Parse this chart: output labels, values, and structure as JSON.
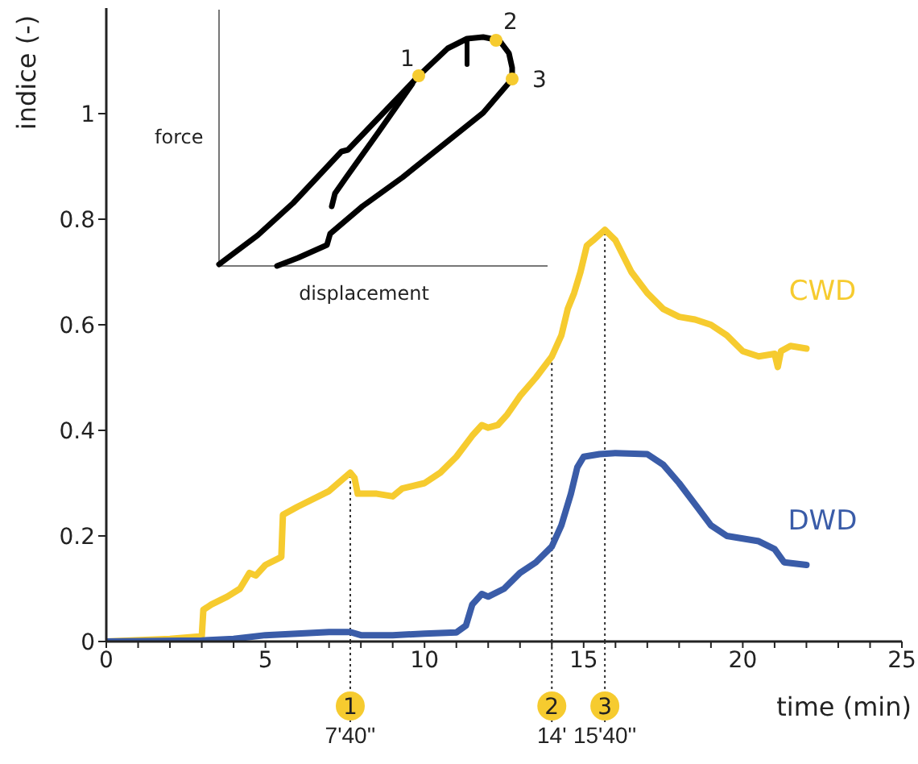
{
  "chart_data": {
    "type": "line",
    "xlabel": "time (min)",
    "ylabel": "indice (-)",
    "xlim": [
      0,
      25
    ],
    "ylim": [
      0,
      1.2
    ],
    "xticks": [
      0,
      {
        "value": 1,
        "label": null
      },
      {
        "value": 2,
        "label": null
      },
      {
        "value": 3,
        "label": null
      },
      {
        "value": 4,
        "label": null
      },
      5,
      {
        "value": 6,
        "label": null
      },
      {
        "value": 7,
        "label": null
      },
      {
        "value": 8,
        "label": null
      },
      {
        "value": 9,
        "label": null
      },
      10,
      {
        "value": 11,
        "label": null
      },
      {
        "value": 12,
        "label": null
      },
      {
        "value": 13,
        "label": null
      },
      {
        "value": 14,
        "label": null
      },
      15,
      {
        "value": 16,
        "label": null
      },
      {
        "value": 17,
        "label": null
      },
      {
        "value": 18,
        "label": null
      },
      {
        "value": 19,
        "label": null
      },
      20,
      {
        "value": 21,
        "label": null
      },
      {
        "value": 22,
        "label": null
      },
      {
        "value": 23,
        "label": null
      },
      {
        "value": 24,
        "label": null
      },
      25
    ],
    "yticks": [
      0,
      0.2,
      0.4,
      0.6,
      0.8,
      1
    ],
    "series": [
      {
        "name": "CWD",
        "color": "#f6cb2f",
        "x": [
          0,
          2,
          3,
          3.05,
          3.3,
          3.8,
          4.2,
          4.5,
          4.7,
          5,
          5.5,
          5.55,
          6,
          7,
          7.667,
          7.8,
          7.9,
          8.5,
          9,
          9.3,
          10,
          10.5,
          11,
          11.5,
          11.8,
          12,
          12.3,
          12.6,
          13,
          13.5,
          14,
          14.3,
          14.5,
          14.7,
          14.9,
          15.1,
          15.3,
          15.667,
          16,
          16.5,
          17,
          17.5,
          18,
          18.5,
          19,
          19.5,
          20,
          20.5,
          21,
          21.1,
          21.2,
          21.5,
          22
        ],
        "values": [
          0,
          0.005,
          0.01,
          0.06,
          0.07,
          0.085,
          0.1,
          0.13,
          0.125,
          0.145,
          0.16,
          0.24,
          0.255,
          0.285,
          0.32,
          0.31,
          0.28,
          0.28,
          0.275,
          0.29,
          0.3,
          0.32,
          0.35,
          0.39,
          0.41,
          0.405,
          0.41,
          0.43,
          0.465,
          0.5,
          0.54,
          0.58,
          0.63,
          0.66,
          0.7,
          0.75,
          0.76,
          0.78,
          0.76,
          0.7,
          0.66,
          0.63,
          0.615,
          0.61,
          0.6,
          0.58,
          0.55,
          0.54,
          0.545,
          0.52,
          0.55,
          0.56,
          0.555
        ]
      },
      {
        "name": "DWD",
        "color": "#3a5ca8",
        "x": [
          0,
          3,
          4,
          5,
          6,
          7,
          7.667,
          8,
          9,
          10,
          11,
          11.3,
          11.5,
          11.8,
          12,
          12.5,
          13,
          13.5,
          14,
          14.3,
          14.6,
          14.8,
          15,
          15.5,
          16,
          17,
          17.5,
          18,
          18.5,
          19,
          19.5,
          20,
          20.5,
          21,
          21.3,
          22
        ],
        "values": [
          0,
          0.002,
          0.005,
          0.012,
          0.015,
          0.018,
          0.018,
          0.012,
          0.012,
          0.015,
          0.017,
          0.03,
          0.07,
          0.09,
          0.085,
          0.1,
          0.13,
          0.15,
          0.18,
          0.22,
          0.28,
          0.33,
          0.35,
          0.355,
          0.357,
          0.355,
          0.335,
          0.3,
          0.26,
          0.22,
          0.2,
          0.195,
          0.19,
          0.175,
          0.15,
          0.145
        ]
      }
    ],
    "ref_lines": [
      {
        "axis": "x",
        "value": 7.6667,
        "color": "#333333",
        "line_style": "dotted"
      },
      {
        "axis": "x",
        "value": 14,
        "color": "#333333",
        "line_style": "dotted"
      },
      {
        "axis": "x",
        "value": 15.6667,
        "color": "#333333",
        "line_style": "dotted"
      }
    ],
    "annotations": [
      "force",
      "displacement",
      "1",
      "2",
      "3",
      "1",
      "2",
      "3",
      "7'40''",
      "14'",
      "15'40''"
    ]
  }
}
